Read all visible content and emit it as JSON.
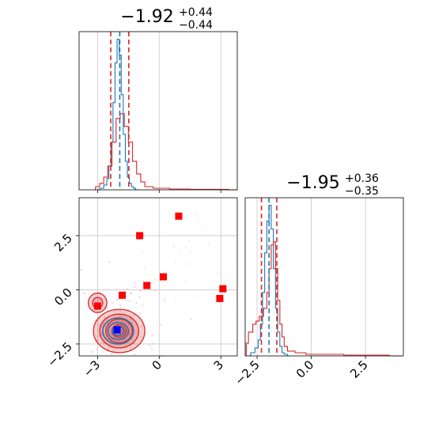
{
  "chart_data": {
    "type": "corner",
    "title": "",
    "colors": {
      "blue": "#1f77b4",
      "red": "#d62728",
      "marker_red": "#ff0000",
      "marker_blue": "#0000ff",
      "grid": "#c8c8c8"
    },
    "axis_ranges": {
      "x": [
        -3.9,
        3.8
      ],
      "y": [
        -3.05,
        4.25
      ]
    },
    "grid": true,
    "panels": [
      {
        "id": "hist-param-1",
        "type": "histogram",
        "title": {
          "main": "−1.92",
          "sup": "+0.44",
          "sub": "−0.44"
        },
        "xlim": [
          -3.9,
          3.8
        ],
        "x_ticks": [
          -3,
          0,
          3
        ],
        "median": -1.92,
        "lower": -2.36,
        "upper": -1.48,
        "series": [
          {
            "name": "blue",
            "color": "#1f77b4",
            "x": [
              -3.0,
              -2.8,
              -2.6,
              -2.5,
              -2.4,
              -2.3,
              -2.2,
              -2.1,
              -2.0,
              -1.9,
              -1.8,
              -1.7,
              -1.6,
              -1.5,
              -1.4,
              -1.3,
              -1.2,
              -1.1,
              -1.0
            ],
            "y": [
              0,
              0.01,
              0.03,
              0.07,
              0.15,
              0.3,
              0.55,
              0.8,
              0.95,
              0.85,
              0.6,
              0.35,
              0.18,
              0.08,
              0.04,
              0.02,
              0.01,
              0,
              0
            ]
          },
          {
            "name": "red",
            "color": "#d62728",
            "x": [
              -3.2,
              -3.0,
              -2.8,
              -2.6,
              -2.4,
              -2.2,
              -2.0,
              -1.8,
              -1.6,
              -1.4,
              -1.2,
              -1.0,
              -0.8,
              -0.6,
              0,
              1,
              2,
              3,
              3.8
            ],
            "y": [
              0,
              0.02,
              0.04,
              0.08,
              0.15,
              0.3,
              0.45,
              0.48,
              0.4,
              0.3,
              0.18,
              0.1,
              0.05,
              0.02,
              0.01,
              0.005,
              0.003,
              0.003,
              0
            ]
          }
        ]
      },
      {
        "id": "hist-param-2",
        "type": "histogram",
        "title": {
          "main": "−1.95",
          "sup": "+0.36",
          "sub": "−0.35"
        },
        "xlim": [
          -3.05,
          4.25
        ],
        "x_ticks": [
          -2.5,
          0.0,
          2.5
        ],
        "x_tick_labels": [
          "−2.5",
          "0.0",
          "2.5"
        ],
        "median": -1.95,
        "lower": -2.3,
        "upper": -1.59,
        "series": [
          {
            "name": "blue",
            "color": "#1f77b4",
            "x": [
              -2.9,
              -2.7,
              -2.5,
              -2.4,
              -2.3,
              -2.2,
              -2.1,
              -2.0,
              -1.9,
              -1.8,
              -1.7,
              -1.6,
              -1.5,
              -1.4,
              -1.3,
              -1.2,
              -1.0
            ],
            "y": [
              0,
              0.02,
              0.05,
              0.1,
              0.2,
              0.4,
              0.65,
              0.85,
              0.95,
              0.8,
              0.55,
              0.3,
              0.15,
              0.06,
              0.02,
              0.01,
              0
            ]
          },
          {
            "name": "red",
            "color": "#d62728",
            "x": [
              -3.0,
              -2.8,
              -2.6,
              -2.5,
              -2.3,
              -2.1,
              -2.0,
              -1.9,
              -1.8,
              -1.7,
              -1.6,
              -1.5,
              -1.4,
              -1.3,
              -1.2,
              -1.0,
              -0.5,
              0,
              1,
              2,
              3,
              4.2
            ],
            "y": [
              0.08,
              0.15,
              0.2,
              0.22,
              0.25,
              0.3,
              0.4,
              0.55,
              0.7,
              0.72,
              0.55,
              0.35,
              0.2,
              0.12,
              0.06,
              0.03,
              0.02,
              0.01,
              0.01,
              0.005,
              0.005,
              0
            ]
          }
        ]
      },
      {
        "id": "scatter-2d",
        "type": "scatter-contour",
        "xlim": [
          -3.9,
          3.8
        ],
        "ylim": [
          -3.05,
          4.25
        ],
        "x_ticks": [
          -3,
          0,
          3
        ],
        "y_ticks": [
          -2.5,
          0.0,
          2.5
        ],
        "y_tick_labels": [
          "−2.5",
          "0.0",
          "2.5"
        ],
        "red_squares": [
          {
            "x": 0.95,
            "y": 3.4
          },
          {
            "x": -0.95,
            "y": 2.5
          },
          {
            "x": 0.2,
            "y": 0.6
          },
          {
            "x": -0.6,
            "y": 0.2
          },
          {
            "x": -1.8,
            "y": -0.25
          },
          {
            "x": -3.0,
            "y": -0.75
          },
          {
            "x": 3.1,
            "y": 0.05
          },
          {
            "x": 2.95,
            "y": -0.4
          }
        ],
        "blue_square": {
          "x": -2.05,
          "y": -1.85
        },
        "red_contours": [
          {
            "cx": -1.95,
            "cy": -1.9,
            "rx": 1.25,
            "ry": 1.0
          },
          {
            "cx": -1.95,
            "cy": -1.9,
            "rx": 0.95,
            "ry": 0.78
          },
          {
            "cx": -1.95,
            "cy": -1.9,
            "rx": 0.65,
            "ry": 0.55
          },
          {
            "cx": -1.95,
            "cy": -1.9,
            "rx": 0.35,
            "ry": 0.3
          },
          {
            "cx": -3.0,
            "cy": -0.6,
            "rx": 0.45,
            "ry": 0.45
          },
          {
            "cx": -3.0,
            "cy": -0.6,
            "rx": 0.25,
            "ry": 0.25
          }
        ],
        "blue_contours": [
          {
            "cx": -2.0,
            "cy": -1.9,
            "rx": 0.75,
            "ry": 0.6
          },
          {
            "cx": -2.0,
            "cy": -1.9,
            "rx": 0.5,
            "ry": 0.4
          },
          {
            "cx": -2.0,
            "cy": -1.9,
            "rx": 0.28,
            "ry": 0.22
          }
        ]
      }
    ]
  }
}
